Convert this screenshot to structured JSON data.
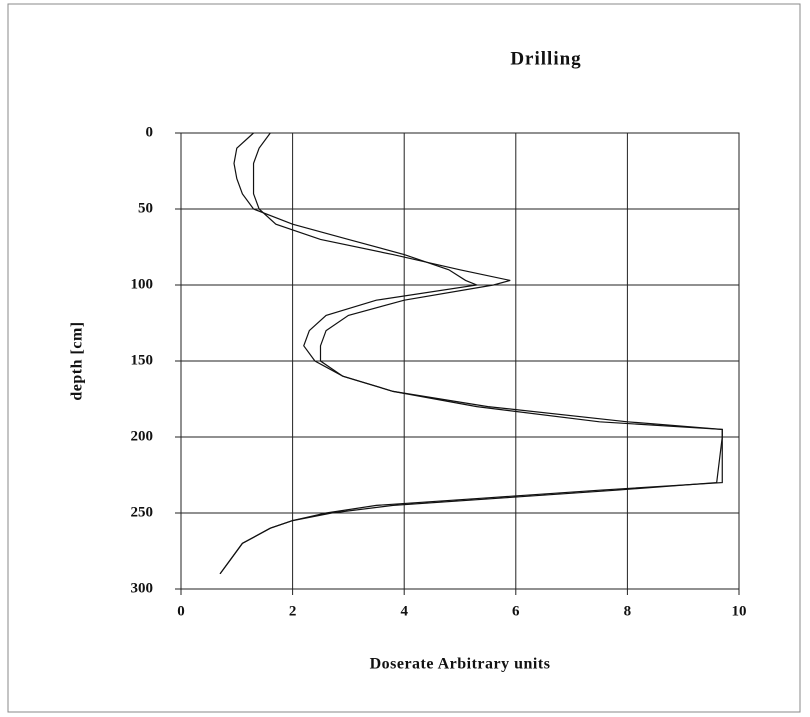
{
  "chart_data": {
    "type": "line",
    "title": "Drilling",
    "xlabel": "Doserate Arbitrary units",
    "ylabel": "depth [cm]",
    "y": [
      0,
      10,
      20,
      30,
      40,
      50,
      60,
      70,
      80,
      90,
      97,
      100,
      110,
      120,
      130,
      140,
      150,
      160,
      170,
      180,
      190,
      195,
      200,
      230,
      235,
      240,
      245,
      250,
      255,
      260,
      270,
      280,
      290
    ],
    "series": [
      {
        "color": "#111111",
        "values": [
          1.6,
          1.4,
          1.3,
          1.3,
          1.3,
          1.4,
          1.7,
          2.5,
          3.8,
          5.0,
          5.9,
          5.6,
          4.0,
          3.0,
          2.6,
          2.5,
          2.5,
          2.9,
          3.8,
          5.5,
          8.0,
          9.7,
          9.7,
          9.7,
          7.5,
          5.5,
          3.5,
          2.6,
          2.0,
          1.6,
          1.1,
          0.9,
          0.7
        ]
      },
      {
        "color": "#111111",
        "values": [
          1.3,
          1.0,
          0.95,
          1.0,
          1.1,
          1.3,
          2.0,
          3.0,
          4.0,
          4.8,
          5.1,
          5.3,
          3.5,
          2.6,
          2.3,
          2.2,
          2.4,
          2.9,
          3.8,
          5.3,
          7.5,
          9.7,
          9.7,
          9.6,
          7.8,
          5.8,
          3.8,
          2.7,
          2.0,
          1.6,
          1.1,
          0.9,
          0.7
        ]
      }
    ],
    "xlim": [
      0,
      10
    ],
    "xticks": [
      0,
      2,
      4,
      6,
      8,
      10
    ],
    "ylim": [
      0,
      300
    ],
    "yticks": [
      0,
      50,
      100,
      150,
      200,
      250,
      300
    ],
    "y_inverted": true,
    "grid": true
  }
}
